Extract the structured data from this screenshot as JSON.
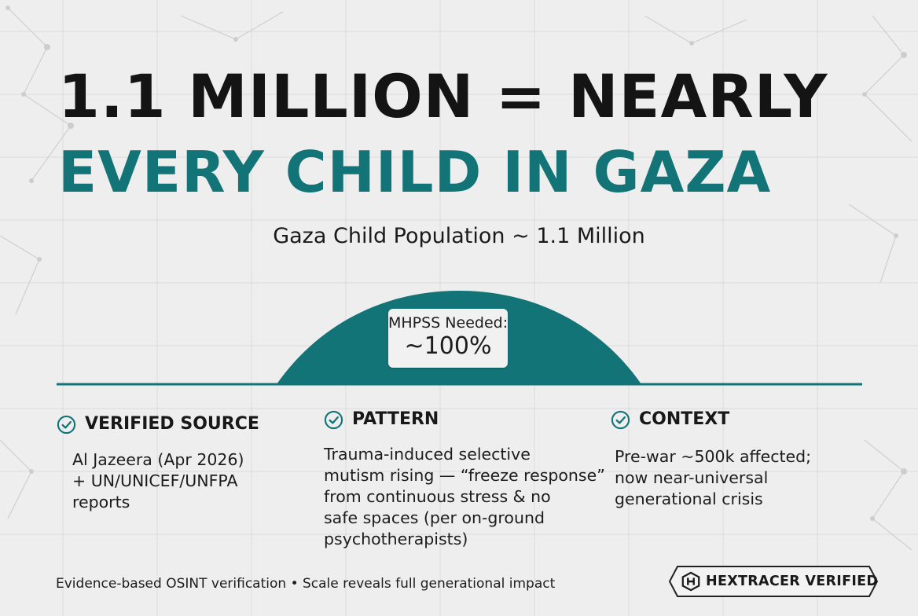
{
  "headline": {
    "line1": "1.1 MILLION = NEARLY",
    "line2": "EVERY CHILD IN GAZA"
  },
  "subtitle": "Gaza Child Population ~ 1.1 Million",
  "gauge": {
    "label": "MHPSS Needed:",
    "value_text": "~100%",
    "value": 100
  },
  "columns": [
    {
      "title": "VERIFIED SOURCE",
      "icon": "check-circle-icon",
      "lines": [
        "Al Jazeera (Apr 2026)",
        "+ UN/UNICEF/UNFPA",
        "reports"
      ]
    },
    {
      "title": "PATTERN",
      "icon": "check-circle-icon",
      "lines": [
        "Trauma-induced selective",
        "mutism rising — “freeze response”",
        "from continuous stress & no",
        "safe spaces (per on-ground",
        "psychotherapists)"
      ]
    },
    {
      "title": "CONTEXT",
      "icon": "check-circle-icon",
      "lines": [
        "Pre-war ~500k affected;",
        "now near-universal",
        "generational crisis"
      ]
    }
  ],
  "footer": {
    "text": "Evidence-based OSINT verification • Scale reveals full generational impact",
    "badge_label": "HEXTRACER VERIFIED",
    "badge_icon": "hexagon-h-icon"
  },
  "colors": {
    "accent": "#137477",
    "headline_dark": "#141414",
    "background": "#eeeeee"
  }
}
